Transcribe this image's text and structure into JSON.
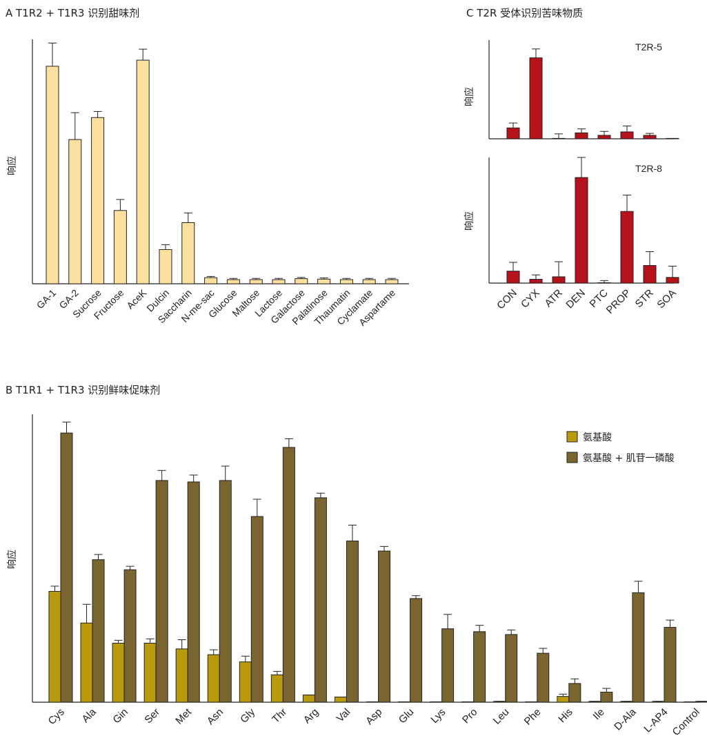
{
  "colors": {
    "sweet": "#FBE0A0",
    "bitter": "#B5121B",
    "amino": "#B89A0C",
    "amino_imp": "#7A6430",
    "axis": "#222222"
  },
  "chart_data": [
    {
      "id": "A",
      "type": "bar",
      "title": "A  T1R2 + T1R3 识别甜味剂",
      "ylabel": "响应",
      "ylim": [
        0,
        100
      ],
      "categories": [
        "GA-1",
        "GA-2",
        "Sucrose",
        "Fructose",
        "AceK",
        "Dulcin",
        "Saccharin",
        "N-me-sac",
        "Glucose",
        "Maltose",
        "Lactose",
        "Galactose",
        "Palatinose",
        "Thaumatin",
        "Cyclamate",
        "Aspartame"
      ],
      "series": [
        {
          "values": [
            89,
            59,
            68,
            30,
            91.5,
            14,
            25,
            2.5,
            1.7,
            1.7,
            1.7,
            2.1,
            1.9,
            1.7,
            1.7,
            1.7
          ],
          "errors": [
            9.5,
            11,
            2.5,
            4.5,
            4.5,
            2,
            4,
            0.5,
            0.5,
            0.5,
            0.5,
            0.5,
            0.5,
            0.5,
            0.5,
            0.5
          ]
        }
      ]
    },
    {
      "id": "C1",
      "type": "bar",
      "title": "C  T2R 受体识别苦味物质",
      "ylabel": "响应",
      "subtitle": "T2R-5",
      "ylim": [
        0,
        100
      ],
      "categories": [
        "CON",
        "CYX",
        "ATR",
        "DEN",
        "PTC",
        "PROP",
        "STR",
        "SOA"
      ],
      "series": [
        {
          "values": [
            11,
            82,
            0,
            6,
            3.5,
            7,
            3.5,
            0
          ],
          "errors": [
            5,
            9,
            5,
            4,
            4,
            6,
            2,
            0
          ]
        }
      ]
    },
    {
      "id": "C2",
      "type": "bar",
      "title": "",
      "ylabel": "响应",
      "subtitle": "T2R-8",
      "ylim": [
        0,
        100
      ],
      "categories": [
        "CON",
        "CYX",
        "ATR",
        "DEN",
        "PTC",
        "PROP",
        "STR",
        "SOA"
      ],
      "series": [
        {
          "values": [
            9.5,
            3,
            5,
            84,
            0,
            57,
            14,
            4.5
          ],
          "errors": [
            7,
            3.5,
            12,
            16,
            2,
            13,
            11,
            9
          ]
        }
      ]
    },
    {
      "id": "B",
      "type": "bar",
      "title": "B  T1R1 + T1R3 识别鲜味促味剂",
      "ylabel": "响应",
      "ylim": [
        0,
        100
      ],
      "categories": [
        "Cys",
        "Ala",
        "Gin",
        "Ser",
        "Met",
        "Asn",
        "Gly",
        "Thr",
        "Arg",
        "Val",
        "Asp",
        "Glu",
        "Lys",
        "Pro",
        "Leu",
        "Phe",
        "His",
        "Ile",
        "D-Ala",
        "L-AP4",
        "Control"
      ],
      "series": [
        {
          "name": "氨基酸",
          "values": [
            38.5,
            27.5,
            20.5,
            20.5,
            18.5,
            16.5,
            14,
            9.5,
            2.5,
            1.8,
            0,
            0,
            0,
            0,
            0.3,
            0,
            2,
            0.3,
            0.3,
            0.3,
            0
          ],
          "errors": [
            1.8,
            6.5,
            1.0,
            1.5,
            3.2,
            1.7,
            2.0,
            1.2,
            0,
            0,
            0,
            0,
            0,
            0,
            0,
            0,
            0.8,
            0,
            0,
            0,
            0
          ]
        },
        {
          "name": "氨基酸 + 肌苷一磷酸",
          "values": [
            93.5,
            49.5,
            46,
            77,
            76.5,
            77,
            64.5,
            88.5,
            71,
            56,
            52.5,
            36,
            25.5,
            24.5,
            23.5,
            17,
            6.5,
            3.5,
            38,
            26,
            0.3
          ],
          "errors": [
            3.8,
            1.8,
            1.2,
            3.5,
            2.4,
            5.0,
            6.0,
            3.0,
            1.6,
            5.5,
            1.6,
            1.0,
            5.0,
            2.2,
            1.6,
            1.7,
            1.6,
            1.3,
            4.0,
            2.5,
            0
          ]
        }
      ]
    }
  ]
}
